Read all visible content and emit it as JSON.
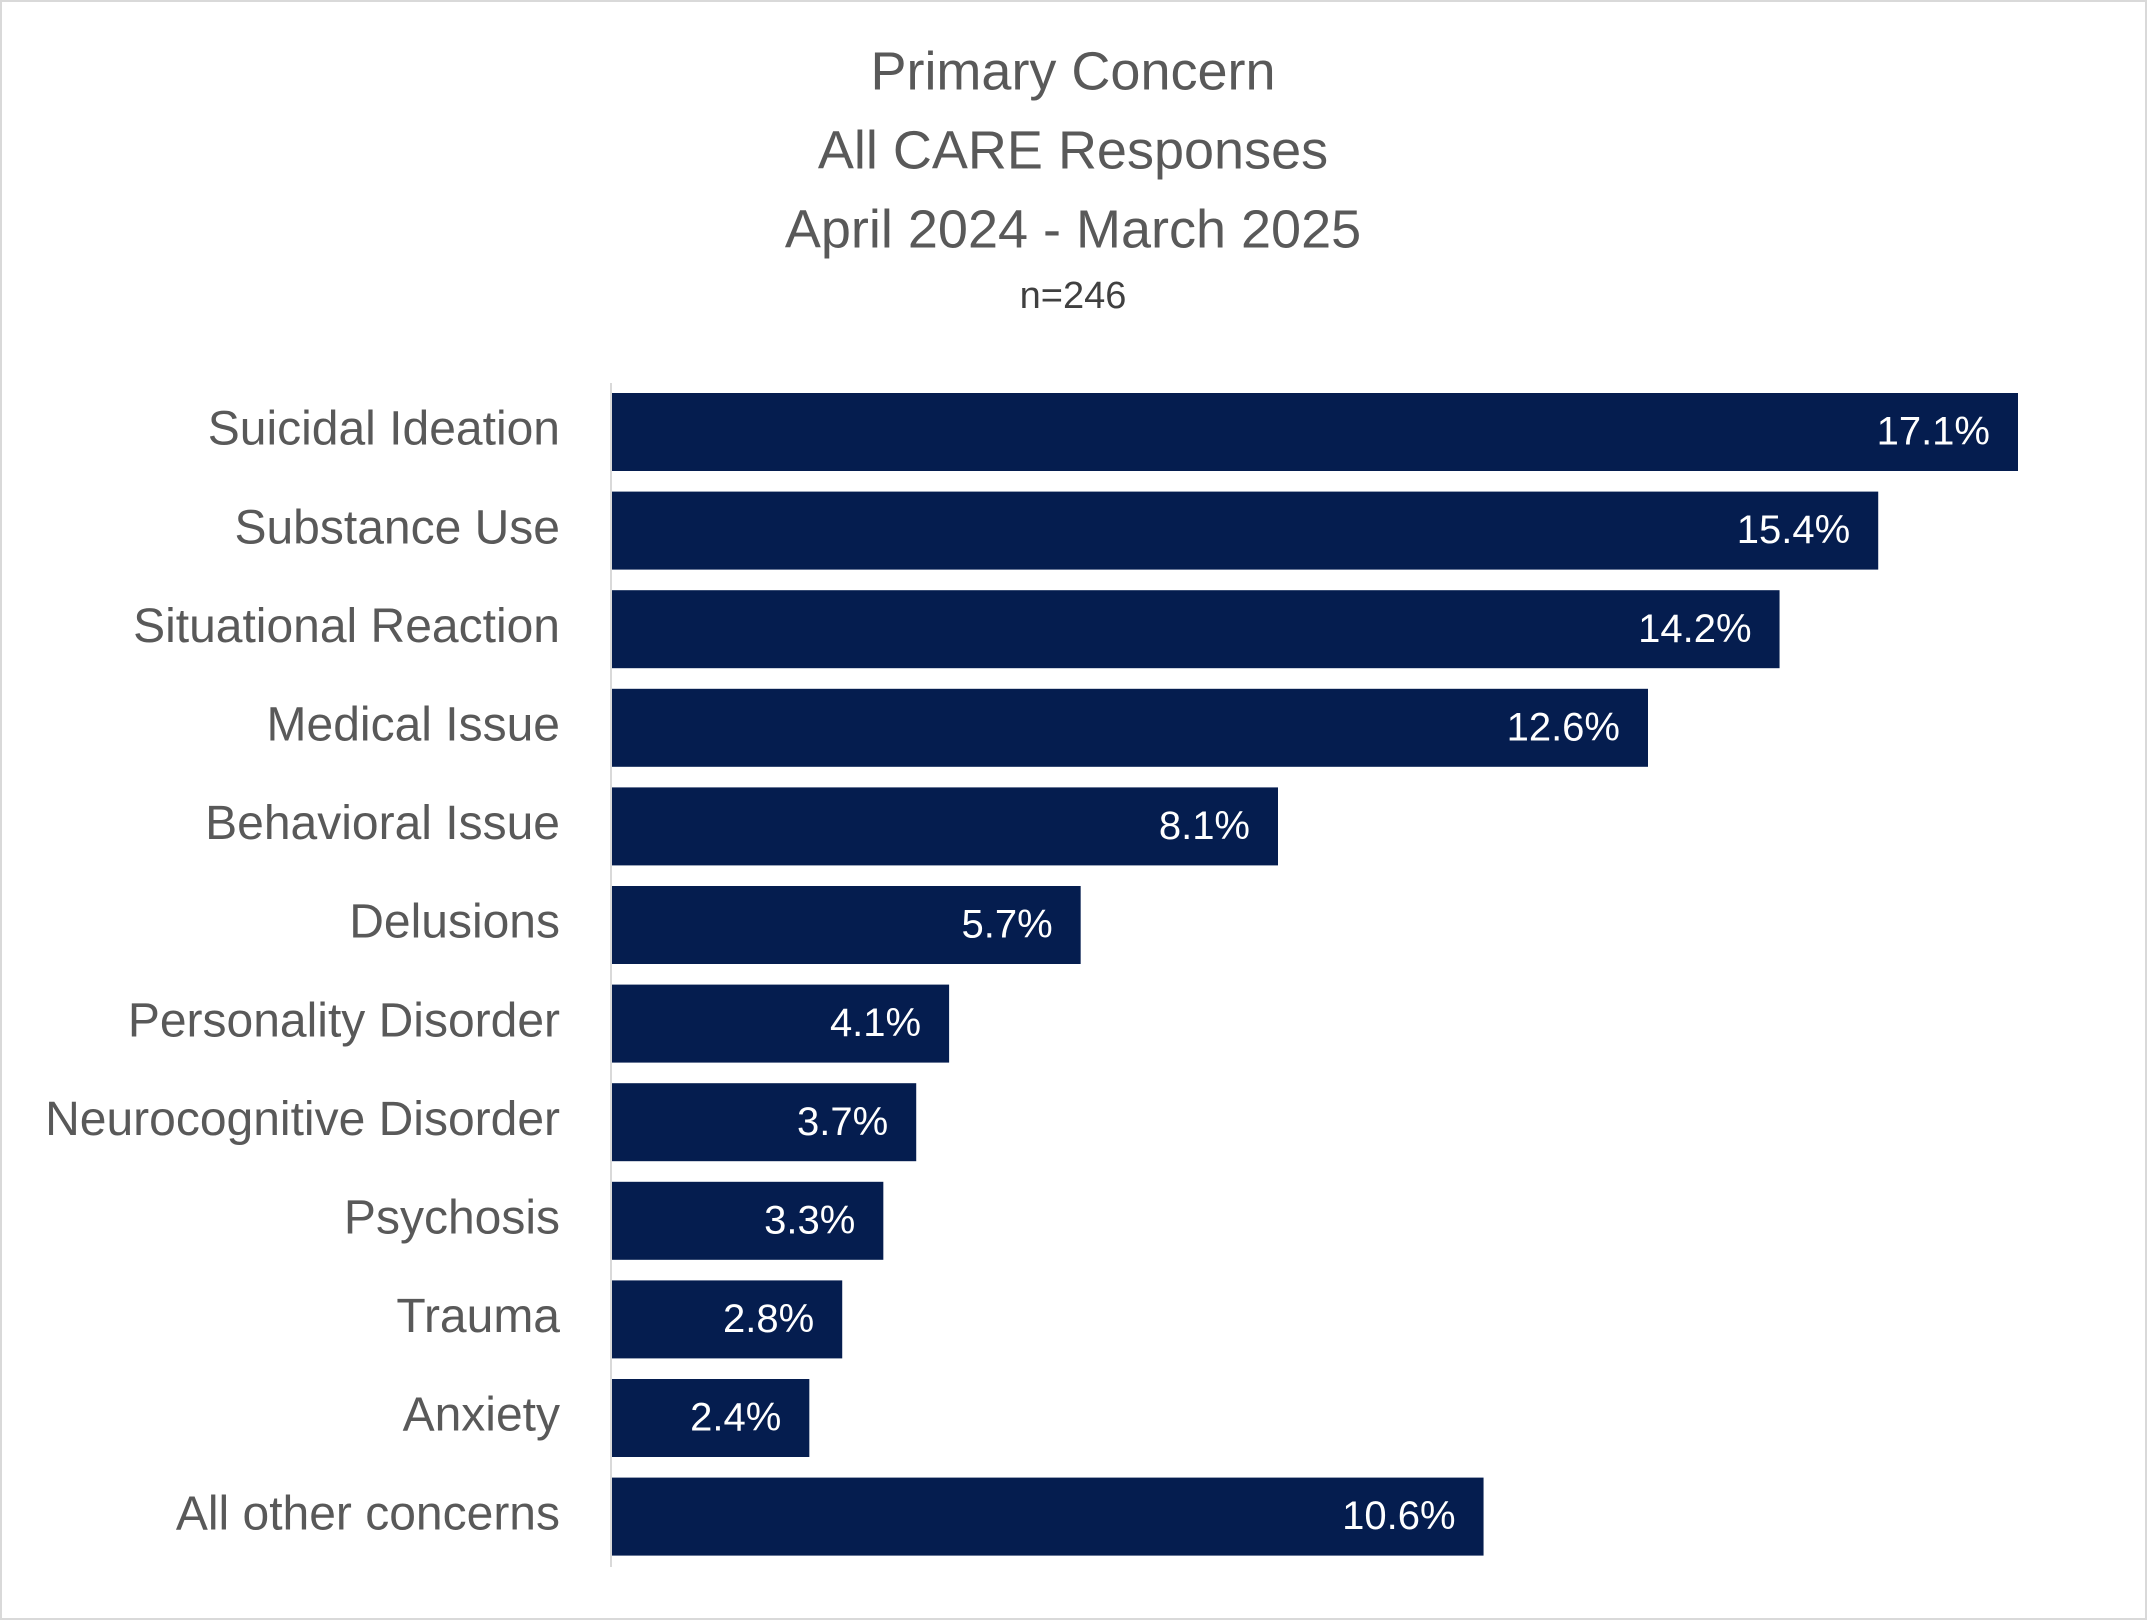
{
  "chart_data": {
    "type": "bar",
    "orientation": "horizontal",
    "title": [
      "Primary Concern",
      "All CARE Responses",
      "April 2024 - March 2025"
    ],
    "subtitle": "n=246",
    "categories": [
      "Suicidal Ideation",
      "Substance Use",
      "Situational Reaction",
      "Medical Issue",
      "Behavioral Issue",
      "Delusions",
      "Personality Disorder",
      "Neurocognitive Disorder",
      "Psychosis",
      "Trauma",
      "Anxiety",
      "All other concerns"
    ],
    "values": [
      17.1,
      15.4,
      14.2,
      12.6,
      8.1,
      5.7,
      4.1,
      3.7,
      3.3,
      2.8,
      2.4,
      10.6
    ],
    "value_labels": [
      "17.1%",
      "15.4%",
      "14.2%",
      "12.6%",
      "8.1%",
      "5.7%",
      "4.1%",
      "3.7%",
      "3.3%",
      "2.8%",
      "2.4%",
      "10.6%"
    ],
    "color": "#051d4f"
  }
}
